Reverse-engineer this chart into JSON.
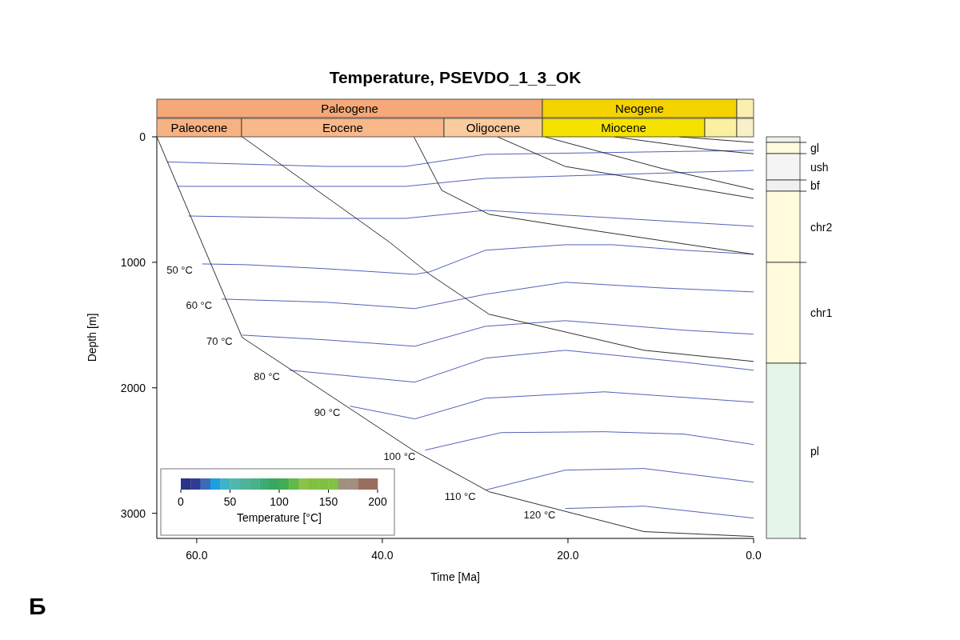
{
  "chart_data": {
    "type": "line",
    "title": "Temperature, PSEVDO_1_3_OK",
    "xlabel": "Time [Ma]",
    "ylabel": "Depth [m]",
    "clabel": "Temperature [°C]",
    "xlim": [
      64.3,
      0
    ],
    "xticks": [
      {
        "value": 60,
        "label": "60.0"
      },
      {
        "value": 40,
        "label": "40.0"
      },
      {
        "value": 20,
        "label": "20.0"
      },
      {
        "value": 0,
        "label": "0.0"
      }
    ],
    "ylim": [
      3200,
      0
    ],
    "yticks": [
      0,
      1000,
      2000,
      3000
    ],
    "colors": [
      "#27348a",
      "#2e3d93",
      "#3d6ab8",
      "#1aa0e0",
      "#3ab4c6",
      "#50b8ae",
      "#4eb39c",
      "#48b08a",
      "#3eab72",
      "#38a85e",
      "#42ad52",
      "#62b84a",
      "#8cc248",
      "#80c040",
      "#80c040",
      "#84c044",
      "#a09080",
      "#a09080",
      "#9a6e5e",
      "#9a6e5e"
    ],
    "series": [
      {
        "color": "#3f4fb0",
        "x": [
          63.2,
          46.1,
          37.5,
          28.9,
          0
        ],
        "values": [
          200,
          236,
          236,
          140,
          108
        ]
      },
      {
        "color": "#3f4fb0",
        "x": [
          62.1,
          37.5,
          28.9,
          0
        ],
        "values": [
          395,
          395,
          331,
          268
        ]
      },
      {
        "color": "#3f4fb0",
        "x": [
          60.9,
          46.1,
          37.5,
          28.9,
          0
        ],
        "values": [
          631,
          650,
          650,
          586,
          713
        ]
      },
      {
        "name": "50 °C",
        "color": "#3f4fb0",
        "x": [
          59.4,
          54.7,
          46.1,
          36.5,
          34.9,
          28.9,
          20.3,
          15.2,
          7.5,
          0
        ],
        "values": [
          1013,
          1019,
          1051,
          1096,
          1076,
          904,
          860,
          860,
          904,
          936
        ]
      },
      {
        "name": "60 °C",
        "color": "#3f4fb0",
        "x": [
          57.3,
          46.1,
          36.5,
          28.9,
          20.3,
          10,
          0
        ],
        "values": [
          1293,
          1318,
          1369,
          1255,
          1159,
          1204,
          1236
        ]
      },
      {
        "name": "70 °C",
        "color": "#3f4fb0",
        "x": [
          55.1,
          46.1,
          36.5,
          28.9,
          20.3,
          7.5,
          0
        ],
        "values": [
          1580,
          1618,
          1669,
          1510,
          1465,
          1541,
          1573
        ]
      },
      {
        "name": "80 °C",
        "color": "#3f4fb0",
        "x": [
          50,
          36.5,
          28.9,
          20.3,
          7.5,
          0
        ],
        "values": [
          1860,
          1955,
          1764,
          1701,
          1796,
          1860
        ]
      },
      {
        "name": "90 °C",
        "color": "#3f4fb0",
        "x": [
          43.5,
          36.5,
          28.9,
          16.1,
          0
        ],
        "values": [
          2146,
          2248,
          2083,
          2032,
          2115
        ]
      },
      {
        "name": "100 °C",
        "color": "#3f4fb0",
        "x": [
          35.4,
          27.2,
          16.1,
          7.5,
          0
        ],
        "values": [
          2497,
          2357,
          2350,
          2369,
          2452
        ]
      },
      {
        "name": "110 °C",
        "color": "#3f4fb0",
        "x": [
          28.9,
          20.3,
          11.8,
          0
        ],
        "values": [
          2815,
          2656,
          2643,
          2752
        ]
      },
      {
        "name": "120 °C",
        "color": "#3f4fb0",
        "x": [
          20.3,
          11.8,
          0
        ],
        "values": [
          2962,
          2943,
          3038
        ]
      },
      {
        "color": "#1a1a1a",
        "x": [
          64.3,
          55.1,
          36.7,
          28.5,
          11.8,
          0
        ],
        "values": [
          0,
          1599,
          2497,
          2828,
          3146,
          3185
        ]
      },
      {
        "color": "#1a1a1a",
        "x": [
          55.1,
          39.2,
          34.9,
          28.5,
          11.8,
          0
        ],
        "values": [
          0,
          841,
          1096,
          1414,
          1701,
          1790
        ]
      },
      {
        "color": "#1a1a1a",
        "x": [
          36.6,
          33.6,
          28.5,
          20.3,
          0
        ],
        "values": [
          0,
          427,
          618,
          713,
          936
        ]
      },
      {
        "color": "#1a1a1a",
        "x": [
          27.6,
          20.3,
          0
        ],
        "values": [
          0,
          236,
          490
        ]
      },
      {
        "color": "#1a1a1a",
        "x": [
          22.5,
          10,
          0
        ],
        "values": [
          0,
          250,
          420
        ]
      },
      {
        "color": "#1a1a1a",
        "x": [
          15,
          5,
          0
        ],
        "values": [
          0,
          100,
          135
        ]
      },
      {
        "color": "#1a1a1a",
        "x": [
          8,
          0
        ],
        "values": [
          0,
          45
        ]
      }
    ],
    "annotations": [
      "Paleogene",
      "Neogene",
      "Paleocene",
      "Eocene",
      "Oligocene",
      "Miocene",
      "gl",
      "ush",
      "bf",
      "chr2",
      "chr1",
      "pl",
      "Б",
      "0",
      "50",
      "100",
      "150",
      "200"
    ]
  }
}
